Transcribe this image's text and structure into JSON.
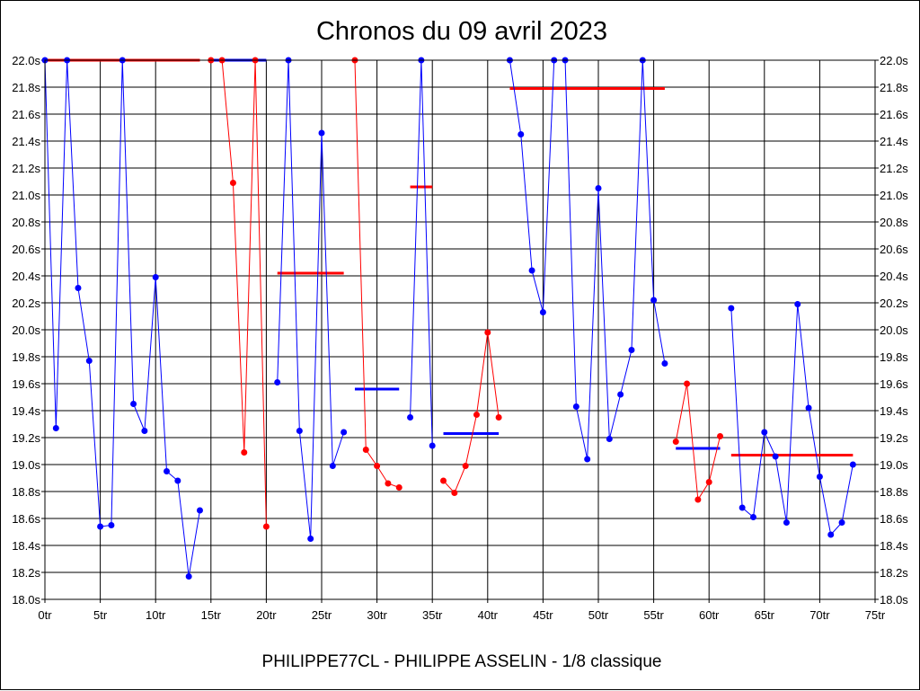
{
  "title": "Chronos du 09 avril 2023",
  "footer": "PHILIPPE77CL - PHILIPPE ASSELIN - 1/8 classique",
  "chart_data": {
    "type": "line",
    "title": "Chronos du 09 avril 2023",
    "xlabel": "",
    "ylabel": "",
    "xlim": [
      0,
      75
    ],
    "ylim": [
      18.0,
      22.0
    ],
    "grid": true,
    "legend": "none",
    "x_ticks": [
      "0tr",
      "5tr",
      "10tr",
      "15tr",
      "20tr",
      "25tr",
      "30tr",
      "35tr",
      "40tr",
      "45tr",
      "50tr",
      "55tr",
      "60tr",
      "65tr",
      "70tr",
      "75tr"
    ],
    "y_ticks": [
      "18.0s",
      "18.2s",
      "18.4s",
      "18.6s",
      "18.8s",
      "19.0s",
      "19.2s",
      "19.4s",
      "19.6s",
      "19.8s",
      "20.0s",
      "20.2s",
      "20.4s",
      "20.6s",
      "20.8s",
      "21.0s",
      "21.2s",
      "21.4s",
      "21.6s",
      "21.8s",
      "22.0s"
    ],
    "series": [
      {
        "color": "#0000ff",
        "points": [
          [
            0,
            22.0
          ],
          [
            1,
            19.27
          ],
          [
            2,
            22.0
          ],
          [
            3,
            20.31
          ],
          [
            4,
            19.77
          ],
          [
            5,
            18.54
          ],
          [
            6,
            18.55
          ],
          [
            7,
            22.0
          ],
          [
            8,
            19.45
          ],
          [
            9,
            19.25
          ],
          [
            10,
            20.39
          ],
          [
            11,
            18.95
          ],
          [
            12,
            18.88
          ],
          [
            13,
            18.17
          ],
          [
            14,
            18.66
          ]
        ]
      },
      {
        "color": "#ff0000",
        "points": [
          [
            15,
            22.0
          ],
          [
            16,
            22.0
          ],
          [
            17,
            21.09
          ],
          [
            18,
            19.09
          ],
          [
            19,
            22.0
          ],
          [
            20,
            18.54
          ]
        ]
      },
      {
        "color": "#0000ff",
        "points": [
          [
            21,
            19.61
          ],
          [
            22,
            22.0
          ],
          [
            23,
            19.25
          ],
          [
            24,
            18.45
          ],
          [
            25,
            21.46
          ],
          [
            26,
            18.99
          ],
          [
            27,
            19.24
          ]
        ]
      },
      {
        "color": "#ff0000",
        "points": [
          [
            28,
            22.0
          ],
          [
            29,
            19.11
          ],
          [
            30,
            18.99
          ],
          [
            31,
            18.86
          ],
          [
            32,
            18.83
          ]
        ]
      },
      {
        "color": "#0000ff",
        "points": [
          [
            33,
            19.35
          ],
          [
            34,
            22.0
          ],
          [
            35,
            19.14
          ]
        ]
      },
      {
        "color": "#ff0000",
        "points": [
          [
            36,
            18.88
          ],
          [
            37,
            18.79
          ],
          [
            38,
            18.99
          ],
          [
            39,
            19.37
          ],
          [
            40,
            19.98
          ],
          [
            41,
            19.35
          ]
        ]
      },
      {
        "color": "#0000ff",
        "points": [
          [
            42,
            22.0
          ],
          [
            43,
            21.45
          ],
          [
            44,
            20.44
          ],
          [
            45,
            20.13
          ],
          [
            46,
            22.0
          ],
          [
            47,
            22.0
          ],
          [
            48,
            19.43
          ],
          [
            49,
            19.04
          ],
          [
            50,
            21.05
          ],
          [
            51,
            19.19
          ],
          [
            52,
            19.52
          ],
          [
            53,
            19.85
          ],
          [
            54,
            22.0
          ],
          [
            55,
            20.22
          ],
          [
            56,
            19.75
          ]
        ]
      },
      {
        "color": "#ff0000",
        "points": [
          [
            57,
            19.17
          ],
          [
            58,
            19.6
          ],
          [
            59,
            18.74
          ],
          [
            60,
            18.87
          ],
          [
            61,
            19.21
          ]
        ]
      },
      {
        "color": "#0000ff",
        "points": [
          [
            62,
            20.16
          ],
          [
            63,
            18.68
          ],
          [
            64,
            18.61
          ],
          [
            65,
            19.24
          ],
          [
            66,
            19.06
          ],
          [
            67,
            18.57
          ],
          [
            68,
            20.19
          ],
          [
            69,
            19.42
          ],
          [
            70,
            18.91
          ],
          [
            71,
            18.48
          ],
          [
            72,
            18.57
          ],
          [
            73,
            19.0
          ]
        ]
      }
    ],
    "averages": [
      {
        "color": "#ff0000",
        "x": [
          0,
          14
        ],
        "y": 22.0
      },
      {
        "color": "#0000ff",
        "x": [
          15,
          20
        ],
        "y": 22.0
      },
      {
        "color": "#ff0000",
        "x": [
          21,
          27
        ],
        "y": 20.42
      },
      {
        "color": "#0000ff",
        "x": [
          28,
          32
        ],
        "y": 19.56
      },
      {
        "color": "#ff0000",
        "x": [
          33,
          35
        ],
        "y": 21.06
      },
      {
        "color": "#0000ff",
        "x": [
          36,
          41
        ],
        "y": 19.23
      },
      {
        "color": "#ff0000",
        "x": [
          42,
          56
        ],
        "y": 21.79
      },
      {
        "color": "#0000ff",
        "x": [
          57,
          61
        ],
        "y": 19.12
      },
      {
        "color": "#ff0000",
        "x": [
          62,
          73
        ],
        "y": 19.07
      }
    ]
  }
}
